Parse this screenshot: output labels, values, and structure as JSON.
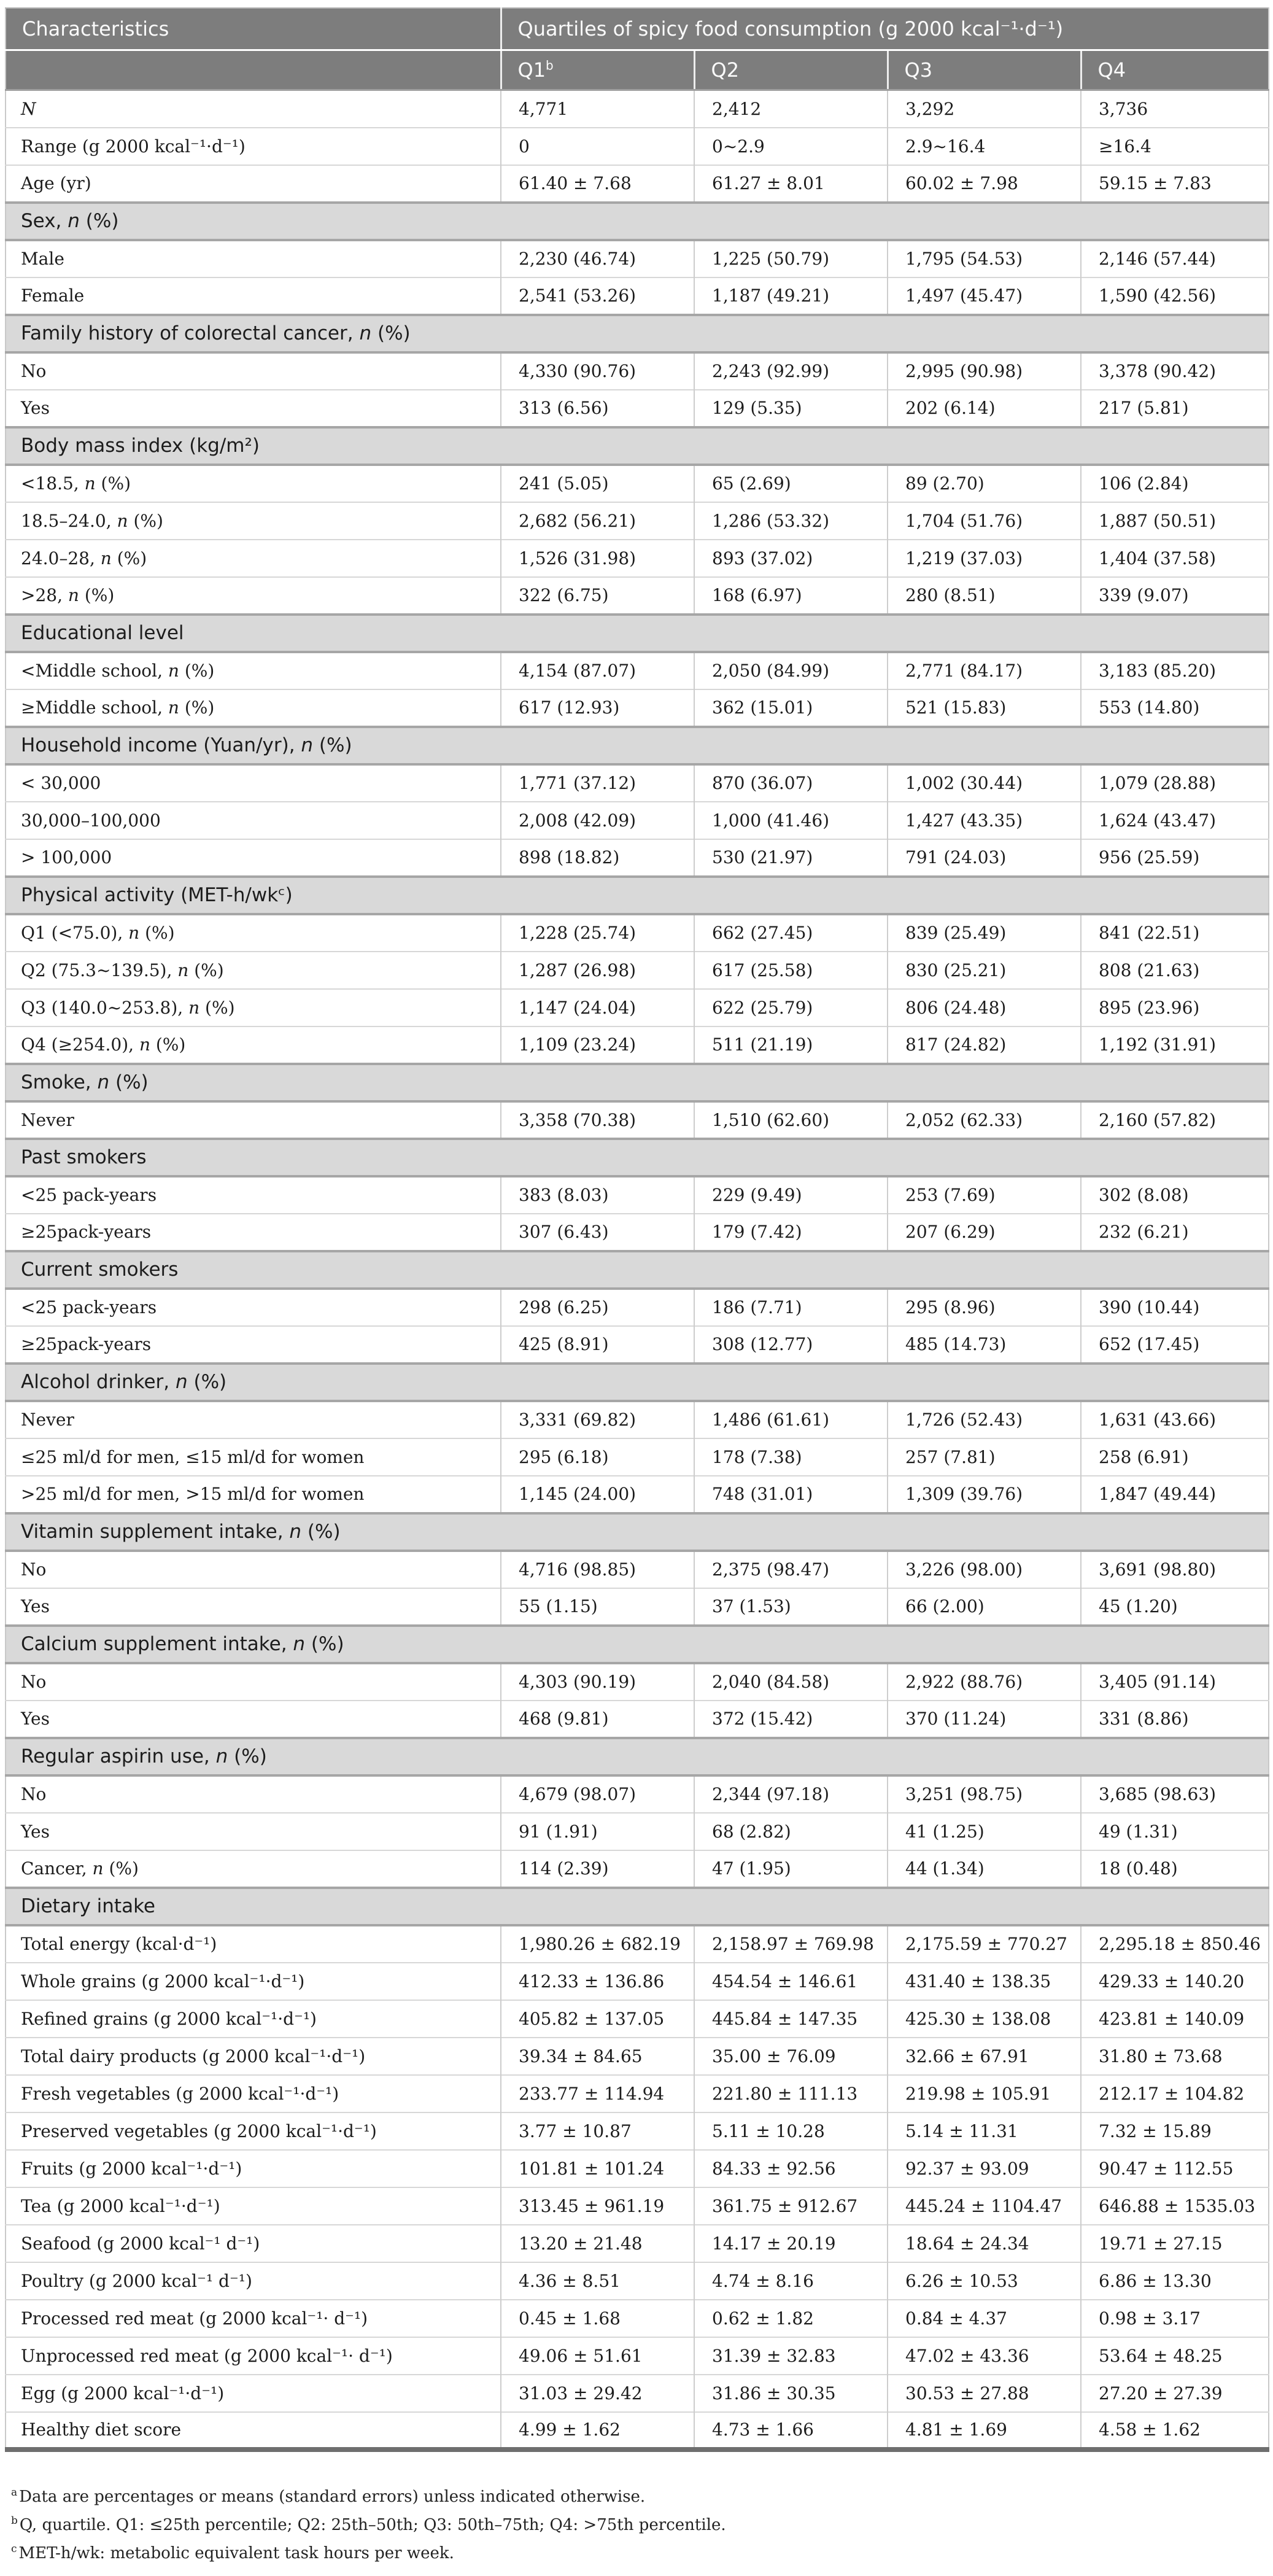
{
  "colors": {
    "header_bg": "#7d7d7d",
    "header_text": "#fafafa",
    "section_bg": "#d9d9d9",
    "body_text": "#1c1c1c",
    "border_thin": "#cdcdcd",
    "border_thick": "#a6a6a6",
    "border_outer": "#c9c9c9",
    "table_bottom": "#6e6e6e"
  },
  "table": {
    "header": {
      "characteristics": "Characteristics",
      "quartiles_title": "Quartiles of spicy food consumption (g 2000 kcal⁻¹·d⁻¹)",
      "q_labels": [
        {
          "text": "Q1",
          "marker": "b"
        },
        {
          "text": "Q2"
        },
        {
          "text": "Q3"
        },
        {
          "text": "Q4"
        }
      ]
    },
    "rows": [
      {
        "type": "data",
        "label": "N",
        "italic": true,
        "values": [
          "4,771",
          "2,412",
          "3,292",
          "3,736"
        ]
      },
      {
        "type": "data",
        "label": "Range (g 2000 kcal⁻¹·d⁻¹)",
        "values": [
          "0",
          "0~2.9",
          "2.9~16.4",
          "≥16.4"
        ]
      },
      {
        "type": "data",
        "label": "Age (yr)",
        "values": [
          "61.40 ± 7.68",
          "61.27 ± 8.01",
          "60.02 ± 7.98",
          "59.15 ± 7.83"
        ]
      },
      {
        "type": "section",
        "label": "Sex, n (%)"
      },
      {
        "type": "data",
        "label": "Male",
        "values": [
          "2,230 (46.74)",
          "1,225 (50.79)",
          "1,795 (54.53)",
          "2,146 (57.44)"
        ]
      },
      {
        "type": "data",
        "label": "Female",
        "values": [
          "2,541 (53.26)",
          "1,187 (49.21)",
          "1,497 (45.47)",
          "1,590 (42.56)"
        ]
      },
      {
        "type": "section",
        "label": "Family history of colorectal cancer, n (%)"
      },
      {
        "type": "data",
        "label": "No",
        "values": [
          "4,330 (90.76)",
          "2,243 (92.99)",
          "2,995 (90.98)",
          "3,378 (90.42)"
        ]
      },
      {
        "type": "data",
        "label": "Yes",
        "values": [
          "313 (6.56)",
          "129 (5.35)",
          "202 (6.14)",
          "217 (5.81)"
        ]
      },
      {
        "type": "section",
        "label": "Body mass index (kg/m²)"
      },
      {
        "type": "data",
        "label": "<18.5, n (%)",
        "values": [
          "241 (5.05)",
          "65 (2.69)",
          "89 (2.70)",
          "106 (2.84)"
        ]
      },
      {
        "type": "data",
        "label": "18.5–24.0, n (%)",
        "values": [
          "2,682 (56.21)",
          "1,286 (53.32)",
          "1,704 (51.76)",
          "1,887 (50.51)"
        ]
      },
      {
        "type": "data",
        "label": "24.0–28, n (%)",
        "values": [
          "1,526 (31.98)",
          "893 (37.02)",
          "1,219 (37.03)",
          "1,404 (37.58)"
        ]
      },
      {
        "type": "data",
        "label": ">28, n (%)",
        "values": [
          "322 (6.75)",
          "168 (6.97)",
          "280 (8.51)",
          "339 (9.07)"
        ]
      },
      {
        "type": "section",
        "label": "Educational level"
      },
      {
        "type": "data",
        "label": "<Middle school, n (%)",
        "values": [
          "4,154 (87.07)",
          "2,050 (84.99)",
          "2,771 (84.17)",
          "3,183 (85.20)"
        ]
      },
      {
        "type": "data",
        "label": "≥Middle school, n (%)",
        "values": [
          "617 (12.93)",
          "362 (15.01)",
          "521 (15.83)",
          "553 (14.80)"
        ]
      },
      {
        "type": "section",
        "label": "Household income (Yuan/yr), n (%)"
      },
      {
        "type": "data",
        "label": "< 30,000",
        "values": [
          "1,771 (37.12)",
          "870 (36.07)",
          "1,002 (30.44)",
          "1,079 (28.88)"
        ]
      },
      {
        "type": "data",
        "label": "30,000–100,000",
        "values": [
          "2,008 (42.09)",
          "1,000 (41.46)",
          "1,427 (43.35)",
          "1,624 (43.47)"
        ]
      },
      {
        "type": "data",
        "label": "> 100,000",
        "values": [
          "898 (18.82)",
          "530 (21.97)",
          "791 (24.03)",
          "956 (25.59)"
        ]
      },
      {
        "type": "section",
        "label": "Physical activity (MET-h/wkᶜ)"
      },
      {
        "type": "data",
        "label": "Q1 (<75.0), n (%)",
        "values": [
          "1,228 (25.74)",
          "662 (27.45)",
          "839 (25.49)",
          "841 (22.51)"
        ]
      },
      {
        "type": "data",
        "label": "Q2 (75.3~139.5), n (%)",
        "values": [
          "1,287 (26.98)",
          "617 (25.58)",
          "830 (25.21)",
          "808 (21.63)"
        ]
      },
      {
        "type": "data",
        "label": "Q3 (140.0~253.8), n (%)",
        "values": [
          "1,147 (24.04)",
          "622 (25.79)",
          "806 (24.48)",
          "895 (23.96)"
        ]
      },
      {
        "type": "data",
        "label": "Q4 (≥254.0), n (%)",
        "values": [
          "1,109 (23.24)",
          "511 (21.19)",
          "817 (24.82)",
          "1,192 (31.91)"
        ]
      },
      {
        "type": "section",
        "label": "Smoke, n (%)"
      },
      {
        "type": "data",
        "label": "Never",
        "values": [
          "3,358 (70.38)",
          "1,510 (62.60)",
          "2,052 (62.33)",
          "2,160 (57.82)"
        ]
      },
      {
        "type": "section",
        "label": "Past smokers"
      },
      {
        "type": "data",
        "label": "<25 pack-years",
        "values": [
          "383 (8.03)",
          "229 (9.49)",
          "253 (7.69)",
          "302 (8.08)"
        ]
      },
      {
        "type": "data",
        "label": "≥25pack-years",
        "values": [
          "307 (6.43)",
          "179 (7.42)",
          "207 (6.29)",
          "232 (6.21)"
        ]
      },
      {
        "type": "section",
        "label": "Current smokers"
      },
      {
        "type": "data",
        "label": "<25 pack-years",
        "values": [
          "298 (6.25)",
          "186 (7.71)",
          "295 (8.96)",
          "390 (10.44)"
        ]
      },
      {
        "type": "data",
        "label": "≥25pack-years",
        "values": [
          "425 (8.91)",
          "308 (12.77)",
          "485 (14.73)",
          "652 (17.45)"
        ]
      },
      {
        "type": "section",
        "label": "Alcohol drinker, n (%)"
      },
      {
        "type": "data",
        "label": "Never",
        "values": [
          "3,331 (69.82)",
          "1,486 (61.61)",
          "1,726 (52.43)",
          "1,631 (43.66)"
        ]
      },
      {
        "type": "data",
        "label": "≤25 ml/d for men, ≤15 ml/d for women",
        "values": [
          "295 (6.18)",
          "178 (7.38)",
          "257 (7.81)",
          "258 (6.91)"
        ]
      },
      {
        "type": "data",
        "label": ">25 ml/d for men, >15 ml/d for women",
        "values": [
          "1,145 (24.00)",
          "748 (31.01)",
          "1,309 (39.76)",
          "1,847 (49.44)"
        ]
      },
      {
        "type": "section",
        "label": "Vitamin supplement intake, n (%)"
      },
      {
        "type": "data",
        "label": "No",
        "values": [
          "4,716 (98.85)",
          "2,375 (98.47)",
          "3,226 (98.00)",
          "3,691 (98.80)"
        ]
      },
      {
        "type": "data",
        "label": "Yes",
        "values": [
          "55 (1.15)",
          "37 (1.53)",
          "66 (2.00)",
          "45 (1.20)"
        ]
      },
      {
        "type": "section",
        "label": "Calcium supplement intake, n (%)"
      },
      {
        "type": "data",
        "label": "No",
        "values": [
          "4,303 (90.19)",
          "2,040 (84.58)",
          "2,922 (88.76)",
          "3,405 (91.14)"
        ]
      },
      {
        "type": "data",
        "label": "Yes",
        "values": [
          "468 (9.81)",
          "372 (15.42)",
          "370 (11.24)",
          "331 (8.86)"
        ]
      },
      {
        "type": "section",
        "label": "Regular aspirin use, n (%)"
      },
      {
        "type": "data",
        "label": "No",
        "values": [
          "4,679 (98.07)",
          "2,344 (97.18)",
          "3,251 (98.75)",
          "3,685 (98.63)"
        ]
      },
      {
        "type": "data",
        "label": "Yes",
        "values": [
          "91 (1.91)",
          "68 (2.82)",
          "41 (1.25)",
          "49 (1.31)"
        ]
      },
      {
        "type": "data",
        "label": "Cancer, n (%)",
        "values": [
          "114 (2.39)",
          "47 (1.95)",
          "44 (1.34)",
          "18 (0.48)"
        ]
      },
      {
        "type": "section",
        "label": "Dietary intake"
      },
      {
        "type": "data",
        "label": "Total energy (kcal·d⁻¹)",
        "values": [
          "1,980.26 ± 682.19",
          "2,158.97 ± 769.98",
          "2,175.59 ± 770.27",
          "2,295.18 ± 850.46"
        ]
      },
      {
        "type": "data",
        "label": "Whole grains (g 2000 kcal⁻¹·d⁻¹)",
        "values": [
          "412.33 ± 136.86",
          "454.54 ± 146.61",
          "431.40 ± 138.35",
          "429.33 ± 140.20"
        ]
      },
      {
        "type": "data",
        "label": "Refined grains (g 2000 kcal⁻¹·d⁻¹)",
        "values": [
          "405.82 ± 137.05",
          "445.84 ± 147.35",
          "425.30 ± 138.08",
          "423.81 ± 140.09"
        ]
      },
      {
        "type": "data",
        "label": "Total dairy products (g 2000 kcal⁻¹·d⁻¹)",
        "values": [
          "39.34 ± 84.65",
          "35.00 ± 76.09",
          "32.66 ± 67.91",
          "31.80 ± 73.68"
        ]
      },
      {
        "type": "data",
        "label": "Fresh vegetables (g 2000 kcal⁻¹·d⁻¹)",
        "values": [
          "233.77 ± 114.94",
          "221.80 ± 111.13",
          "219.98 ± 105.91",
          "212.17 ± 104.82"
        ]
      },
      {
        "type": "data",
        "label": "Preserved vegetables (g 2000 kcal⁻¹·d⁻¹)",
        "values": [
          "3.77 ± 10.87",
          "5.11 ± 10.28",
          "5.14 ± 11.31",
          "7.32 ± 15.89"
        ]
      },
      {
        "type": "data",
        "label": "Fruits (g 2000 kcal⁻¹·d⁻¹)",
        "values": [
          "101.81 ± 101.24",
          "84.33 ± 92.56",
          "92.37 ± 93.09",
          "90.47 ± 112.55"
        ]
      },
      {
        "type": "data",
        "label": "Tea (g 2000 kcal⁻¹·d⁻¹)",
        "values": [
          "313.45 ± 961.19",
          "361.75 ± 912.67",
          "445.24 ± 1104.47",
          "646.88 ± 1535.03"
        ]
      },
      {
        "type": "data",
        "label": "Seafood (g 2000 kcal⁻¹ d⁻¹)",
        "values": [
          "13.20 ± 21.48",
          "14.17 ± 20.19",
          "18.64 ± 24.34",
          "19.71 ± 27.15"
        ]
      },
      {
        "type": "data",
        "label": "Poultry (g 2000 kcal⁻¹ d⁻¹)",
        "values": [
          "4.36 ± 8.51",
          "4.74 ± 8.16",
          "6.26 ± 10.53",
          "6.86 ± 13.30"
        ]
      },
      {
        "type": "data",
        "label": "Processed red meat (g 2000 kcal⁻¹· d⁻¹)",
        "values": [
          "0.45 ± 1.68",
          "0.62 ± 1.82",
          "0.84 ± 4.37",
          "0.98 ± 3.17"
        ]
      },
      {
        "type": "data",
        "label": "Unprocessed red meat (g 2000 kcal⁻¹· d⁻¹)",
        "values": [
          "49.06 ± 51.61",
          "31.39 ± 32.83",
          "47.02 ± 43.36",
          "53.64 ± 48.25"
        ]
      },
      {
        "type": "data",
        "label": "Egg (g 2000 kcal⁻¹·d⁻¹)",
        "values": [
          "31.03 ± 29.42",
          "31.86 ± 30.35",
          "30.53 ± 27.88",
          "27.20 ± 27.39"
        ]
      },
      {
        "type": "data",
        "label": "Healthy diet score",
        "values": [
          "4.99 ± 1.62",
          "4.73 ± 1.66",
          "4.81 ± 1.69",
          "4.58 ± 1.62"
        ]
      }
    ]
  },
  "footnotes": [
    {
      "marker": "a",
      "text": "Data are percentages or means (standard errors) unless indicated otherwise."
    },
    {
      "marker": "b",
      "text": "Q, quartile. Q1: ≤25th percentile; Q2: 25th–50th; Q3: 50th–75th; Q4: >75th percentile."
    },
    {
      "marker": "c",
      "text": "MET-h/wk: metabolic equivalent task hours per week."
    }
  ]
}
